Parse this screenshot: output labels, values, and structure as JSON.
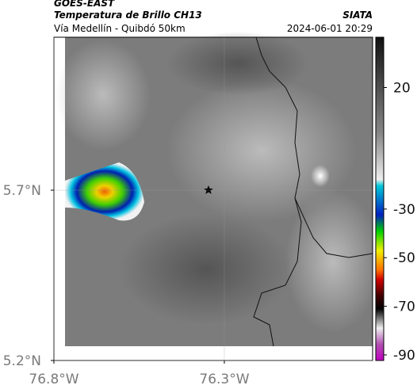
{
  "header": {
    "source": "GOES-EAST",
    "product": "Temperatura de Brillo CH13",
    "region": "Vía Medellín - Quibdó 50km",
    "agency": "SIATA",
    "datetime": "2024-06-01 20:29"
  },
  "map": {
    "xlim": [
      -76.8,
      -75.865
    ],
    "ylim": [
      5.2,
      6.149
    ],
    "xticks": [
      {
        "value": -76.8,
        "label": "76.8°W"
      },
      {
        "value": -76.3,
        "label": "76.3°W"
      }
    ],
    "yticks": [
      {
        "value": 5.2,
        "label": "5.2°N"
      },
      {
        "value": 5.7,
        "label": "5.7°N"
      }
    ]
  },
  "colorbar": {
    "lim": [
      -92.3,
      40.7
    ],
    "ticks": [
      20,
      -30,
      -50,
      -70,
      -90
    ]
  }
}
